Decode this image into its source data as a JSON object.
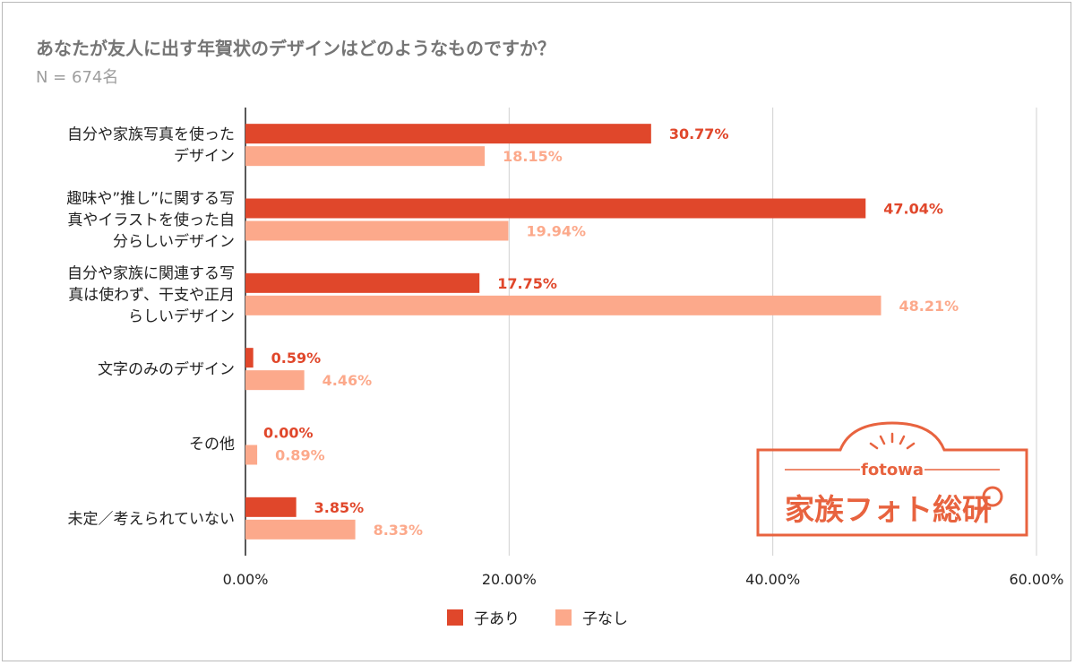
{
  "title": "あなたが友人に出す年賀状のデザインはどのようなものですか？",
  "subtitle": "N = 674名",
  "legend": {
    "with_children": "子あり",
    "without_children": "子なし"
  },
  "logo": {
    "brand_small": "fotowa",
    "brand_main": "家族フォト総研"
  },
  "colors": {
    "with_children": "#e0472b",
    "without_children": "#fca98b",
    "logo": "#e8633f"
  },
  "chart_data": {
    "type": "bar",
    "orientation": "horizontal",
    "title": "あなたが友人に出す年賀状のデザインはどのようなものですか？",
    "xlim": [
      0,
      60
    ],
    "xticks": [
      "0.00%",
      "20.00%",
      "40.00%",
      "60.00%"
    ],
    "grid": true,
    "legend_position": "bottom",
    "categories": [
      [
        "自分や家族写真を使った",
        "デザイン"
      ],
      [
        "趣味や”推し”に関する写",
        "真やイラストを使った自",
        "分らしいデザイン"
      ],
      [
        "自分や家族に関連する写",
        "真は使わず、干支や正月",
        "らしいデザイン"
      ],
      [
        "文字のみのデザイン"
      ],
      [
        "その他"
      ],
      [
        "未定／考えられていない"
      ]
    ],
    "series": [
      {
        "name": "子あり",
        "values": [
          30.77,
          47.04,
          17.75,
          0.59,
          0.0,
          3.85
        ],
        "labels": [
          "30.77%",
          "47.04%",
          "17.75%",
          "0.59%",
          "0.00%",
          "3.85%"
        ]
      },
      {
        "name": "子なし",
        "values": [
          18.15,
          19.94,
          48.21,
          4.46,
          0.89,
          8.33
        ],
        "labels": [
          "18.15%",
          "19.94%",
          "48.21%",
          "4.46%",
          "0.89%",
          "8.33%"
        ]
      }
    ]
  }
}
